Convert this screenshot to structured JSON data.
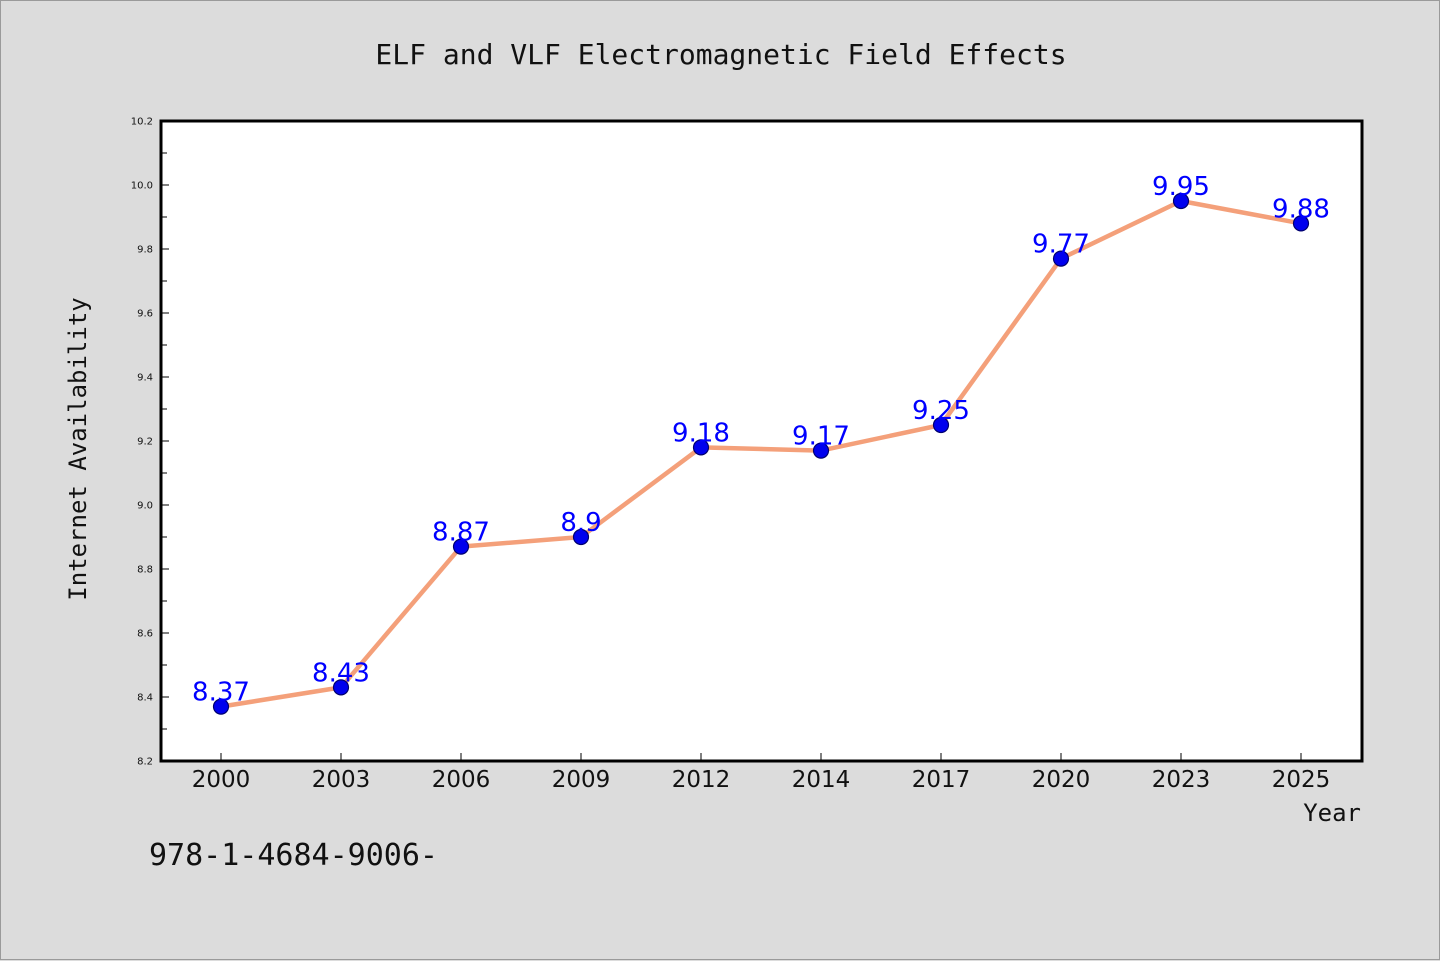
{
  "chart_data": {
    "type": "line",
    "title": "ELF and VLF Electromagnetic Field Effects",
    "xlabel": "Year",
    "ylabel": "Internet Availability",
    "categories": [
      "2000",
      "2003",
      "2006",
      "2009",
      "2012",
      "2014",
      "2017",
      "2020",
      "2023",
      "2025"
    ],
    "series": [
      {
        "values": [
          8.37,
          8.43,
          8.87,
          8.9,
          9.18,
          9.17,
          9.25,
          9.77,
          9.95,
          9.88
        ],
        "data_labels": [
          "8.37",
          "8.43",
          "8.87",
          "8.9",
          "9.18",
          "9.17",
          "9.25",
          "9.77",
          "9.95",
          "9.88"
        ],
        "line_color": "#f4a07a",
        "marker_color": "#0000ee",
        "marker_edge_color": "#00006e",
        "label_color": "#0000ff"
      }
    ],
    "ylim": [
      8.2,
      10.2
    ],
    "yticks": [
      "8.2",
      "8.4",
      "8.6",
      "8.8",
      "9.0",
      "9.2",
      "9.4",
      "9.6",
      "9.8",
      "10.0",
      "10.2"
    ],
    "grid": false,
    "legend": "none"
  },
  "footer": {
    "text": "978-1-4684-9006-"
  },
  "colors": {
    "background": "#dcdcdc",
    "plot_background": "#ffffff",
    "axes": "#000000"
  }
}
